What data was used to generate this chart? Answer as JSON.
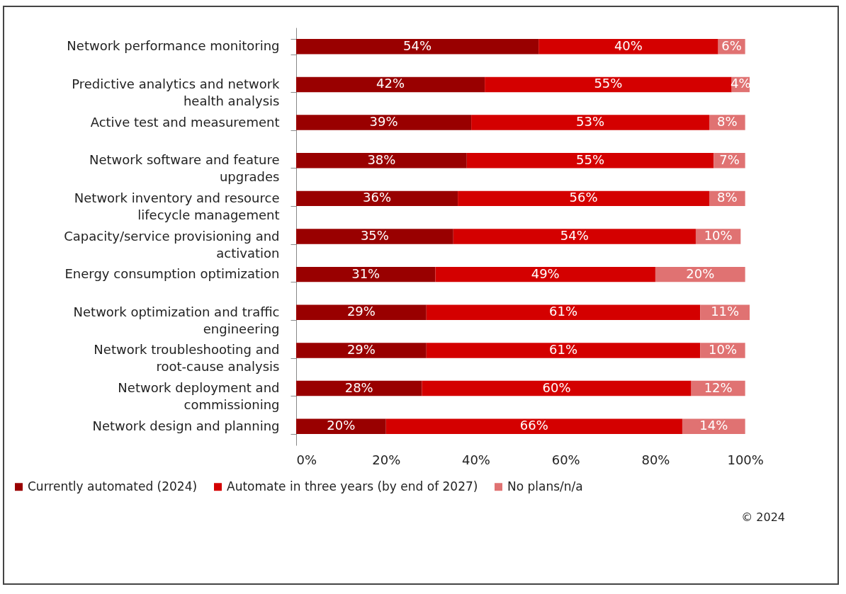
{
  "chart_data": {
    "type": "bar",
    "orientation": "horizontal",
    "stacked": true,
    "categories": [
      "Network performance monitoring",
      "Predictive analytics and network health analysis",
      "Active test and measurement",
      "Network software and feature upgrades",
      "Network inventory and resource lifecycle management",
      "Capacity/service provisioning and activation",
      "Energy consumption optimization",
      "Network optimization and traffic engineering",
      "Network troubleshooting and root-cause analysis",
      "Network deployment and commissioning",
      "Network design and planning"
    ],
    "series": [
      {
        "name": "Currently automated (2024)",
        "color": "#990000",
        "values": [
          54,
          42,
          39,
          38,
          36,
          35,
          31,
          29,
          29,
          28,
          20
        ],
        "value_labels": [
          "54%",
          "42%",
          "39%",
          "38%",
          "36%",
          "35%",
          "31%",
          "29%",
          "29%",
          "28%",
          "20%"
        ]
      },
      {
        "name": "Automate in three years (by end of 2027)",
        "color": "#d40000",
        "values": [
          40,
          55,
          53,
          55,
          56,
          54,
          49,
          61,
          61,
          60,
          66
        ],
        "value_labels": [
          "40%",
          "55%",
          "53%",
          "55%",
          "56%",
          "54%",
          "49%",
          "61%",
          "61%",
          "60%",
          "66%"
        ]
      },
      {
        "name": "No plans/n/a",
        "color": "#e07272",
        "values": [
          6,
          4,
          8,
          7,
          8,
          10,
          20,
          11,
          10,
          12,
          14
        ],
        "value_labels": [
          "6%",
          "4%",
          "8%",
          "7%",
          "8%",
          "10%",
          "20%",
          "11%",
          "10%",
          "12%",
          "14%"
        ]
      }
    ],
    "xlim": [
      0,
      101
    ],
    "xticks": [
      {
        "value": 0,
        "label": "0%"
      },
      {
        "value": 20,
        "label": "20%"
      },
      {
        "value": 40,
        "label": "40%"
      },
      {
        "value": 60,
        "label": "60%"
      },
      {
        "value": 80,
        "label": "80%"
      },
      {
        "value": 100,
        "label": "100%"
      }
    ],
    "grid": false,
    "legend": "bottom",
    "annotations": [
      "© 2024"
    ]
  }
}
